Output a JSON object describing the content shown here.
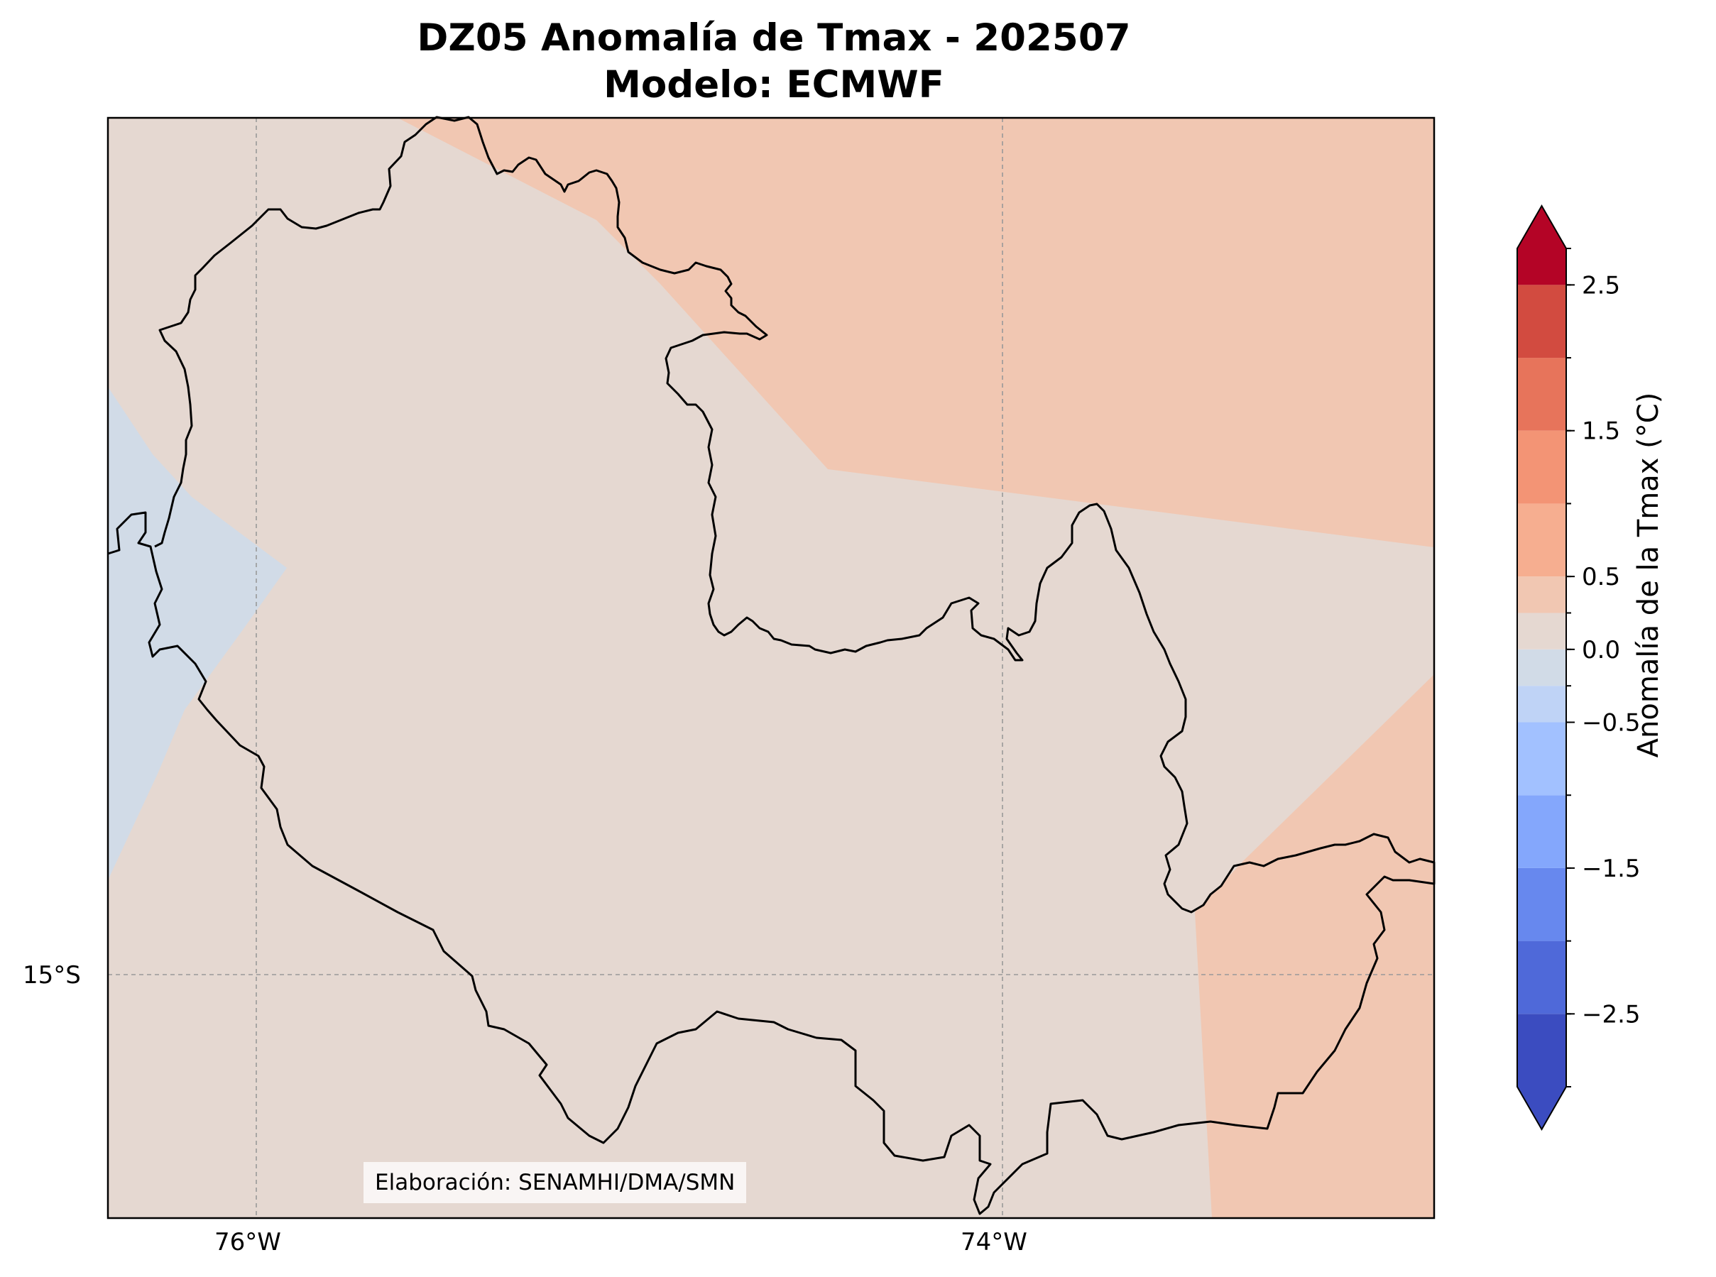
{
  "title": {
    "line1": "DZ05 Anomalía de Tmax - 202507",
    "line2": "Modelo: ECMWF"
  },
  "map": {
    "lon_ticks": [
      {
        "value": -76,
        "label": "76°W"
      },
      {
        "value": -74,
        "label": "74°W"
      }
    ],
    "lat_ticks": [
      {
        "value": -15,
        "label": "15°S"
      }
    ],
    "gridlines": true,
    "region_outline": "Arequipa / Ayacucho coastal-Andean region (DZ05) boundary",
    "background_anomaly_class": "0.0 to 0.25",
    "fields": [
      {
        "name": "northeast warm zone",
        "class": "0.25 to 0.5",
        "color": "#f1c7b2"
      },
      {
        "name": "southeast warm zone",
        "class": "0.25 to 0.5",
        "color": "#f1c7b2"
      },
      {
        "name": "western coastal cool zone",
        "class": "-0.25 to 0.0",
        "color": "#d1dbe7"
      }
    ]
  },
  "credit": "Elaboración: SENAMHI/DMA/SMN",
  "colorbar": {
    "label": "Anomalía de la Tmax (°C)",
    "bounds": [
      -3.0,
      2.75
    ],
    "extend": "both",
    "tick_labels": [
      {
        "value": 2.5,
        "label": "2.5"
      },
      {
        "value": 1.5,
        "label": "1.5"
      },
      {
        "value": 0.5,
        "label": "0.5"
      },
      {
        "value": 0.0,
        "label": "0.0"
      },
      {
        "value": -0.5,
        "label": "−0.5"
      },
      {
        "value": -1.5,
        "label": "−1.5"
      },
      {
        "value": -2.5,
        "label": "−2.5"
      }
    ],
    "levels": [
      {
        "from": -3.0,
        "to": -2.5,
        "color": "#3b4cc0"
      },
      {
        "from": -2.5,
        "to": -2.0,
        "color": "#4f69d9"
      },
      {
        "from": -2.0,
        "to": -1.5,
        "color": "#6788ee"
      },
      {
        "from": -1.5,
        "to": -1.0,
        "color": "#84a7fc"
      },
      {
        "from": -1.0,
        "to": -0.5,
        "color": "#a2c1ff"
      },
      {
        "from": -0.5,
        "to": -0.25,
        "color": "#bfd3f6"
      },
      {
        "from": -0.25,
        "to": 0.0,
        "color": "#d1dbe7"
      },
      {
        "from": 0.0,
        "to": 0.25,
        "color": "#e5d8d1"
      },
      {
        "from": 0.25,
        "to": 0.5,
        "color": "#f1c7b2"
      },
      {
        "from": 0.5,
        "to": 1.0,
        "color": "#f6ae90"
      },
      {
        "from": 1.0,
        "to": 1.5,
        "color": "#f39475"
      },
      {
        "from": 1.5,
        "to": 2.0,
        "color": "#e7745b"
      },
      {
        "from": 2.0,
        "to": 2.5,
        "color": "#d24b40"
      },
      {
        "from": 2.5,
        "to": 2.75,
        "color": "#b40426"
      }
    ],
    "under_color": "#3b4cc0",
    "over_color": "#b40426"
  }
}
